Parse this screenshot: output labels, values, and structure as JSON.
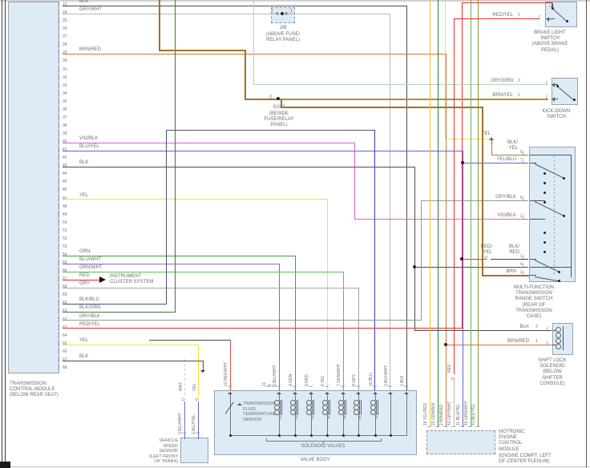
{
  "colors": {
    "BLK": "#4d4d4d",
    "GRY_WHT": "#b7b7b7",
    "BRN_RED": "#d2743c",
    "VIO_BLK": "#e05fe0",
    "BLU_YEL": "#6262cf",
    "YEL": "#f2e531",
    "GRN": "#3aa33a",
    "BLU_WHT": "#6f6fd9",
    "GRN_WHT": "#5cba5c",
    "RED": "#e62e2e",
    "GRY": "#a5a5a5",
    "BLK_BLU": "#50506e",
    "BLK_GRN": "#43743f",
    "GRY_BLK": "#969696",
    "RED_YEL": "#e62e2e",
    "BRN": "#9c7526",
    "BRN_YEL": "#b29030",
    "GRY_GRN": "#b2d6b2",
    "RED_WHT": "#e64d4d",
    "BLU": "#3a3acc",
    "YEL_RED": "#ecc32e",
    "GRN_BLK": "#2e7d2e",
    "BLK_YEL": "#8f8f2e",
    "WHT": "#cfcfcf",
    "BLK_RED": "#7a3030"
  },
  "tcm": {
    "label": "TRANSMISSION\nCONTROL MODULE\n(BELOW REAR SEAT)",
    "pins": [
      {
        "n": "23",
        "w": "BLK"
      },
      {
        "n": "24",
        "w": "GRY/WHT"
      },
      {
        "n": "25",
        "w": ""
      },
      {
        "n": "26",
        "w": ""
      },
      {
        "n": "27",
        "w": ""
      },
      {
        "n": "28",
        "w": ""
      },
      {
        "n": "29",
        "w": "BRN/RED"
      },
      {
        "n": "30",
        "w": ""
      },
      {
        "n": "31",
        "w": ""
      },
      {
        "n": "32",
        "w": ""
      },
      {
        "n": "33",
        "w": ""
      },
      {
        "n": "34",
        "w": ""
      },
      {
        "n": "35",
        "w": ""
      },
      {
        "n": "36",
        "w": ""
      },
      {
        "n": "37",
        "w": ""
      },
      {
        "n": "38",
        "w": ""
      },
      {
        "n": "39",
        "w": ""
      },
      {
        "n": "40",
        "w": "VIO/BLK"
      },
      {
        "n": "41",
        "w": "BLU/YEL"
      },
      {
        "n": "42",
        "w": ""
      },
      {
        "n": "43",
        "w": "BLK"
      },
      {
        "n": "44",
        "w": ""
      },
      {
        "n": "45",
        "w": ""
      },
      {
        "n": "46",
        "w": ""
      },
      {
        "n": "47",
        "w": "YEL"
      },
      {
        "n": "48",
        "w": ""
      },
      {
        "n": "49",
        "w": ""
      },
      {
        "n": "50",
        "w": ""
      },
      {
        "n": "51",
        "w": ""
      },
      {
        "n": "52",
        "w": ""
      },
      {
        "n": "53",
        "w": ""
      },
      {
        "n": "54",
        "w": "GRN"
      },
      {
        "n": "55",
        "w": "BLU/WHT"
      },
      {
        "n": "56",
        "w": "GRN/WHT"
      },
      {
        "n": "57",
        "w": "RED"
      },
      {
        "n": "58",
        "w": "GRY"
      },
      {
        "n": "59",
        "w": ""
      },
      {
        "n": "60",
        "w": "BLK/BLU"
      },
      {
        "n": "61",
        "w": "BLK/GRN"
      },
      {
        "n": "62",
        "w": "GRY/BLK"
      },
      {
        "n": "63",
        "w": "RED/YEL"
      },
      {
        "n": "64",
        "w": ""
      },
      {
        "n": "65",
        "w": "YEL"
      },
      {
        "n": "66",
        "w": ""
      },
      {
        "n": "67",
        "w": "BLK"
      },
      {
        "n": "68",
        "w": ""
      }
    ]
  },
  "instrument_cluster": {
    "label": "INSTRUMENT\nCLUSTER SYSTEM"
  },
  "jb": {
    "name": "J/B",
    "location": "(ABOVE FUSE/\nRELAY PANEL)"
  },
  "g202": {
    "name": "G202",
    "location": "(BESIDE\nFUSE/RELAY\nPANEL)"
  },
  "brake_light_switch": {
    "label": "BRAKE LIGHT\nSWITCH\n(ABOVE BRAKE\nPEDAL)",
    "pins": [
      {
        "n": "1",
        "w": "RED/YEL"
      }
    ]
  },
  "kick_down_switch": {
    "label": "KICK-DOWN\nSWITCH",
    "pins": [
      {
        "n": "2",
        "w": "GRY/GRN"
      },
      {
        "n": "1",
        "w": "BRN/YEL"
      }
    ]
  },
  "mfs": {
    "label": "MULTI-FUNCTION\nTRANSMISSION\nRANGE SWITCH\n(REAR OF\nTRANSMISSION\nCASE)",
    "yel_label": "YEL",
    "blk_yel_label": "BLK/\nYEL",
    "red_yel_label": "RED/\nYEL",
    "blk_red_label": "BLK/\nRED",
    "pins": [
      {
        "n": "5",
        "w": ""
      },
      {
        "n": "7",
        "w": "YEL/BLU"
      },
      {
        "n": "6",
        "w": "GRY/BLK"
      },
      {
        "n": "2",
        "w": "VIO/BLK"
      },
      {
        "n": "1",
        "w": ""
      },
      {
        "n": "4",
        "w": ""
      },
      {
        "n": "3",
        "w": "BRN"
      }
    ]
  },
  "shift_lock": {
    "label": "SHIFT LOCK\nSOLENOID\n(BELOW\nSHIFTER\nCONSOLE)",
    "pins": [
      {
        "n": "2",
        "w": "BLK"
      },
      {
        "n": "1",
        "w": "BRN/RED"
      }
    ]
  },
  "vss": {
    "label": "VEHICLE\nSPEED\nSENSOR\n(LEFT FRONT\nOF TRANS)",
    "upper": [
      "WHT",
      "YEL"
    ],
    "pins": [
      {
        "n": "2",
        "w": "BLU/WHT"
      },
      {
        "n": "1",
        "w": "BLU/YEL"
      }
    ]
  },
  "valve_body": {
    "label": "VALVE BODY",
    "solenoid_caption": "SOLENOID VALVES",
    "tft_label": "TRANSMISSION\nFLUID\nTEMPERATURE\nSENSOR",
    "pins": [
      {
        "n": "12",
        "w": "RED/WHT"
      },
      {
        "n": "11",
        "w": ""
      },
      {
        "n": "9",
        "w": ""
      },
      {
        "n": "3",
        "w": "BLU/WHT"
      },
      {
        "n": "4",
        "w": "GRN"
      },
      {
        "n": "5",
        "w": "RED"
      },
      {
        "n": "6",
        "w": "YEL"
      },
      {
        "n": "7",
        "w": "GRN/WHT"
      },
      {
        "n": "8",
        "w": "GRY"
      },
      {
        "n": "10",
        "w": "BLU"
      },
      {
        "n": "2",
        "w": "BLK/WHT"
      },
      {
        "n": "1",
        "w": "BLK"
      }
    ],
    "solenoids": [
      "1",
      "2",
      "3",
      "4",
      "5",
      "6",
      "7"
    ]
  },
  "ecm": {
    "label": "MOTRONIC\nENGINE\nCONTROL\nMODULE",
    "location": "(ENGINE COMPT, LEFT\nOF CENTER PLENUM)",
    "pins": [
      {
        "n": "16",
        "w": "YEL/RED"
      },
      {
        "n": "22",
        "w": "GRN/BLK"
      },
      {
        "n": "2",
        "w": "BRN/RED"
      },
      {
        "n": "43",
        "w": "GRY/WHT"
      },
      {
        "n": "11",
        "w": "BLU/YEL"
      },
      {
        "n": "40",
        "w": "GRN/WHT"
      },
      {
        "n": "41",
        "w": "BLK/YEL"
      }
    ]
  },
  "misc": {
    "red": "RED"
  }
}
